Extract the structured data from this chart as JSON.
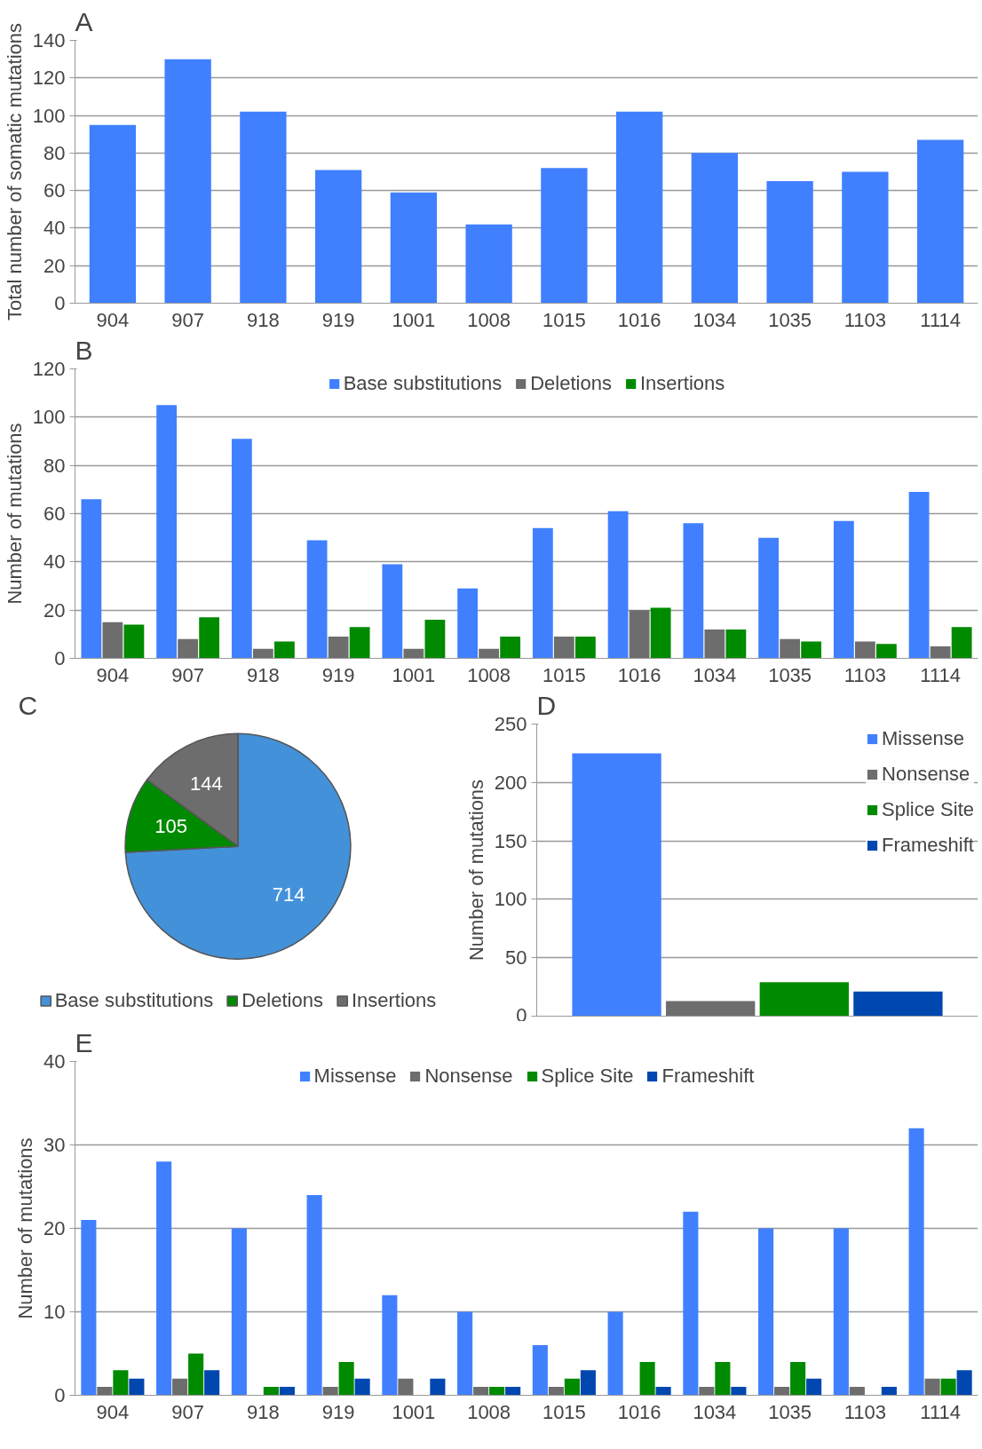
{
  "chart_data": [
    {
      "type": "bar",
      "title": "A",
      "ylabel": "Total number of somatic mutations",
      "categories": [
        "904",
        "907",
        "918",
        "919",
        "1001",
        "1008",
        "1015",
        "1016",
        "1034",
        "1035",
        "1103",
        "1114"
      ],
      "values": [
        95,
        130,
        102,
        71,
        59,
        42,
        72,
        102,
        80,
        65,
        70,
        87
      ],
      "color": "#4080ff",
      "ylim": [
        0,
        140
      ],
      "yticks": [
        0,
        20,
        40,
        60,
        80,
        100,
        120,
        140
      ],
      "grid": "y"
    },
    {
      "type": "bar",
      "title": "B",
      "ylabel": "Number of mutations",
      "categories": [
        "904",
        "907",
        "918",
        "919",
        "1001",
        "1008",
        "1015",
        "1016",
        "1034",
        "1035",
        "1103",
        "1114"
      ],
      "series": [
        {
          "name": "Base substitutions",
          "color": "#4080ff",
          "values": [
            66,
            105,
            91,
            49,
            39,
            29,
            54,
            61,
            56,
            50,
            57,
            69
          ]
        },
        {
          "name": "Deletions",
          "color": "#6d6d6d",
          "values": [
            15,
            8,
            4,
            9,
            4,
            4,
            9,
            20,
            12,
            8,
            7,
            5
          ]
        },
        {
          "name": "Insertions",
          "color": "#008a00",
          "values": [
            14,
            17,
            7,
            13,
            16,
            9,
            9,
            21,
            12,
            7,
            6,
            13
          ]
        }
      ],
      "ylim": [
        0,
        120
      ],
      "yticks": [
        0,
        20,
        40,
        60,
        80,
        100,
        120
      ],
      "grid": "y",
      "legend": "top"
    },
    {
      "type": "pie",
      "title": "C",
      "categories": [
        "Base substitutions",
        "Deletions",
        "Insertions"
      ],
      "values": [
        714,
        105,
        144
      ],
      "colors": [
        "#4391d9",
        "#008a00",
        "#6d6d6d"
      ],
      "data_labels": true,
      "legend": "bottom"
    },
    {
      "type": "bar",
      "title": "D",
      "ylabel": "Number of mutations",
      "categories": [
        null
      ],
      "series": [
        {
          "name": "Missense",
          "color": "#4080ff",
          "values": [
            225
          ]
        },
        {
          "name": "Nonsense",
          "color": "#6d6d6d",
          "values": [
            13
          ]
        },
        {
          "name": "Splice Site",
          "color": "#008a00",
          "values": [
            29
          ]
        },
        {
          "name": "Frameshift",
          "color": "#0047b0",
          "values": [
            21
          ]
        }
      ],
      "ylim": [
        0,
        250
      ],
      "yticks": [
        0,
        50,
        100,
        150,
        200,
        250
      ],
      "grid": "y",
      "legend": "top right",
      "tick_labels": "y"
    },
    {
      "type": "bar",
      "title": "E",
      "ylabel": "Number of mutations",
      "categories": [
        "904",
        "907",
        "918",
        "919",
        "1001",
        "1008",
        "1015",
        "1016",
        "1034",
        "1035",
        "1103",
        "1114"
      ],
      "series": [
        {
          "name": "Missense",
          "color": "#4080ff",
          "values": [
            21,
            28,
            20,
            24,
            12,
            10,
            6,
            10,
            22,
            20,
            20,
            32
          ]
        },
        {
          "name": "Nonsense",
          "color": "#6d6d6d",
          "values": [
            1,
            2,
            0,
            1,
            2,
            1,
            1,
            0,
            1,
            1,
            1,
            2
          ]
        },
        {
          "name": "Splice Site",
          "color": "#008a00",
          "values": [
            3,
            5,
            1,
            4,
            0,
            1,
            2,
            4,
            4,
            4,
            0,
            2
          ]
        },
        {
          "name": "Frameshift",
          "color": "#0047b0",
          "values": [
            2,
            3,
            1,
            2,
            2,
            1,
            3,
            1,
            1,
            2,
            1,
            3
          ]
        }
      ],
      "ylim": [
        0,
        40
      ],
      "yticks": [
        0,
        10,
        20,
        30,
        40
      ],
      "grid": "y",
      "legend": "top"
    }
  ]
}
